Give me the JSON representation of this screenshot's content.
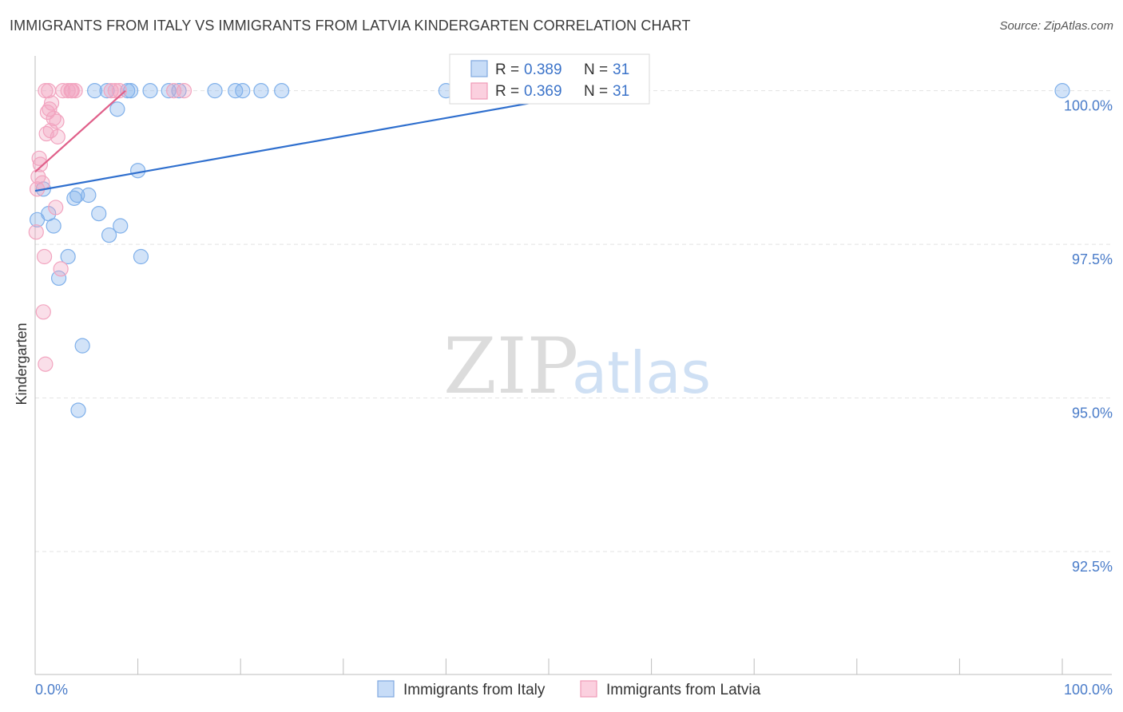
{
  "header": {
    "title": "IMMIGRANTS FROM ITALY VS IMMIGRANTS FROM LATVIA KINDERGARTEN CORRELATION CHART",
    "source": "Source: ZipAtlas.com"
  },
  "watermark": {
    "zip": "ZIP",
    "atlas": "atlas"
  },
  "stats_legend": {
    "r_label": "R =",
    "n_label": "N =",
    "rows": [
      {
        "r": "0.389",
        "n": "31"
      },
      {
        "r": "0.369",
        "n": "31"
      }
    ]
  },
  "chart_data": {
    "type": "scatter",
    "title": "IMMIGRANTS FROM ITALY VS IMMIGRANTS FROM LATVIA KINDERGARTEN CORRELATION CHART",
    "xlabel": "",
    "ylabel": "Kindergarten",
    "xlim": [
      0,
      100
    ],
    "ylim": [
      90.5,
      100.45
    ],
    "x_tick_labels": [
      "0.0%",
      "100.0%"
    ],
    "y_ticks": [
      92.5,
      95.0,
      97.5,
      100.0
    ],
    "y_tick_labels": [
      "92.5%",
      "95.0%",
      "97.5%",
      "100.0%"
    ],
    "grid": true,
    "legend_position": "bottom",
    "series": [
      {
        "name": "Immigrants from Italy",
        "color": "#7fb0ea",
        "line_color": "#2f6fce",
        "r": 0.389,
        "n": 31,
        "trend": [
          [
            0,
            98.37
          ],
          [
            55,
            100.0
          ]
        ],
        "points": [
          [
            0.2,
            97.9
          ],
          [
            0.8,
            98.4
          ],
          [
            1.3,
            98.0
          ],
          [
            1.8,
            97.8
          ],
          [
            2.3,
            96.95
          ],
          [
            3.2,
            97.3
          ],
          [
            4.1,
            98.3
          ],
          [
            4.6,
            95.85
          ],
          [
            3.8,
            98.25
          ],
          [
            5.2,
            98.3
          ],
          [
            6.2,
            98.0
          ],
          [
            7.2,
            97.65
          ],
          [
            8.0,
            99.7
          ],
          [
            8.3,
            97.8
          ],
          [
            9.0,
            100.0
          ],
          [
            9.3,
            100.0
          ],
          [
            10.0,
            98.7
          ],
          [
            10.3,
            97.3
          ],
          [
            4.2,
            94.8
          ],
          [
            5.8,
            100.0
          ],
          [
            7.0,
            100.0
          ],
          [
            11.2,
            100.0
          ],
          [
            13.0,
            100.0
          ],
          [
            14.0,
            100.0
          ],
          [
            17.5,
            100.0
          ],
          [
            19.5,
            100.0
          ],
          [
            20.2,
            100.0
          ],
          [
            22.0,
            100.0
          ],
          [
            24.0,
            100.0
          ],
          [
            40.0,
            100.0
          ],
          [
            100.0,
            100.0
          ]
        ]
      },
      {
        "name": "Immigrants from Latvia",
        "color": "#f2a4bf",
        "line_color": "#e0608a",
        "r": 0.369,
        "n": 31,
        "trend": [
          [
            0,
            98.68
          ],
          [
            8.8,
            100.0
          ]
        ],
        "points": [
          [
            0.1,
            97.7
          ],
          [
            0.2,
            98.4
          ],
          [
            0.3,
            98.6
          ],
          [
            0.4,
            98.9
          ],
          [
            0.5,
            98.8
          ],
          [
            0.7,
            98.5
          ],
          [
            0.8,
            96.4
          ],
          [
            0.9,
            97.3
          ],
          [
            1.0,
            95.55
          ],
          [
            1.1,
            99.3
          ],
          [
            1.2,
            99.65
          ],
          [
            1.4,
            99.7
          ],
          [
            1.5,
            99.35
          ],
          [
            1.6,
            99.8
          ],
          [
            1.8,
            99.55
          ],
          [
            2.0,
            98.1
          ],
          [
            2.1,
            99.5
          ],
          [
            2.2,
            99.25
          ],
          [
            2.5,
            97.1
          ],
          [
            1.0,
            100.0
          ],
          [
            1.3,
            100.0
          ],
          [
            2.7,
            100.0
          ],
          [
            3.2,
            100.0
          ],
          [
            3.6,
            100.0
          ],
          [
            3.9,
            100.0
          ],
          [
            7.4,
            100.0
          ],
          [
            7.8,
            100.0
          ],
          [
            8.2,
            100.0
          ],
          [
            13.5,
            100.0
          ],
          [
            14.5,
            100.0
          ],
          [
            3.5,
            100.0
          ]
        ]
      }
    ]
  }
}
